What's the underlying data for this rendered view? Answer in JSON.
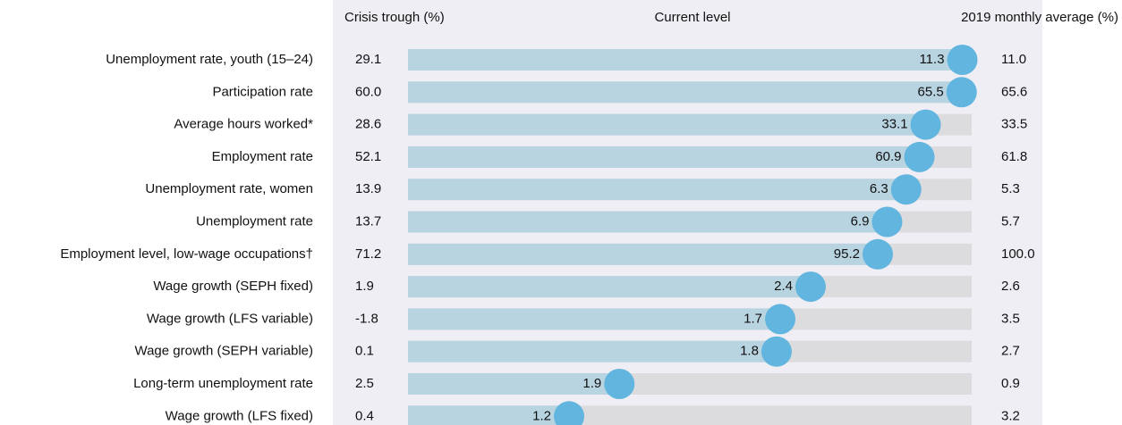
{
  "chart_data": {
    "type": "dot-progress",
    "categories": [
      "Unemployment rate, youth (15–24)",
      "Participation rate",
      "Average hours worked*",
      "Employment rate",
      "Unemployment rate, women",
      "Unemployment rate",
      "Employment level, low-wage occupations†",
      "Wage growth (SEPH fixed)",
      "Wage growth (LFS variable)",
      "Wage growth (SEPH variable)",
      "Long-term unemployment rate",
      "Wage growth (LFS fixed)"
    ],
    "series": [
      {
        "name": "Crisis trough (%)",
        "values": [
          29.1,
          60,
          28.6,
          52.1,
          13.9,
          13.7,
          71.2,
          1.9,
          -1.8,
          0.1,
          2.5,
          0.4
        ],
        "value_labels": [
          "29.1",
          "60.0",
          "28.6",
          "52.1",
          "13.9",
          "13.7",
          "71.2",
          "1.9",
          "-1.8",
          "0.1",
          "2.5",
          "0.4"
        ]
      },
      {
        "name": "Current level",
        "color": "#62b5de",
        "values": [
          11.3,
          65.5,
          33.1,
          60.9,
          6.3,
          6.9,
          95.2,
          2.4,
          1.7,
          1.8,
          1.9,
          1.2
        ],
        "value_labels": [
          "11.3",
          "65.5",
          "33.1",
          "60.9",
          "6.3",
          "6.9",
          "95.2",
          "2.4",
          "1.7",
          "1.8",
          "1.9",
          "1.2"
        ]
      },
      {
        "name": "2019 monthly average (%)",
        "values": [
          11,
          65.6,
          33.5,
          61.8,
          5.3,
          5.7,
          100,
          2.6,
          3.5,
          2.7,
          0.9,
          3.2
        ],
        "value_labels": [
          "11.0",
          "65.6",
          "33.5",
          "61.8",
          "5.3",
          "5.7",
          "100.0",
          "2.6",
          "3.5",
          "2.7",
          "0.9",
          "3.2"
        ]
      }
    ]
  }
}
